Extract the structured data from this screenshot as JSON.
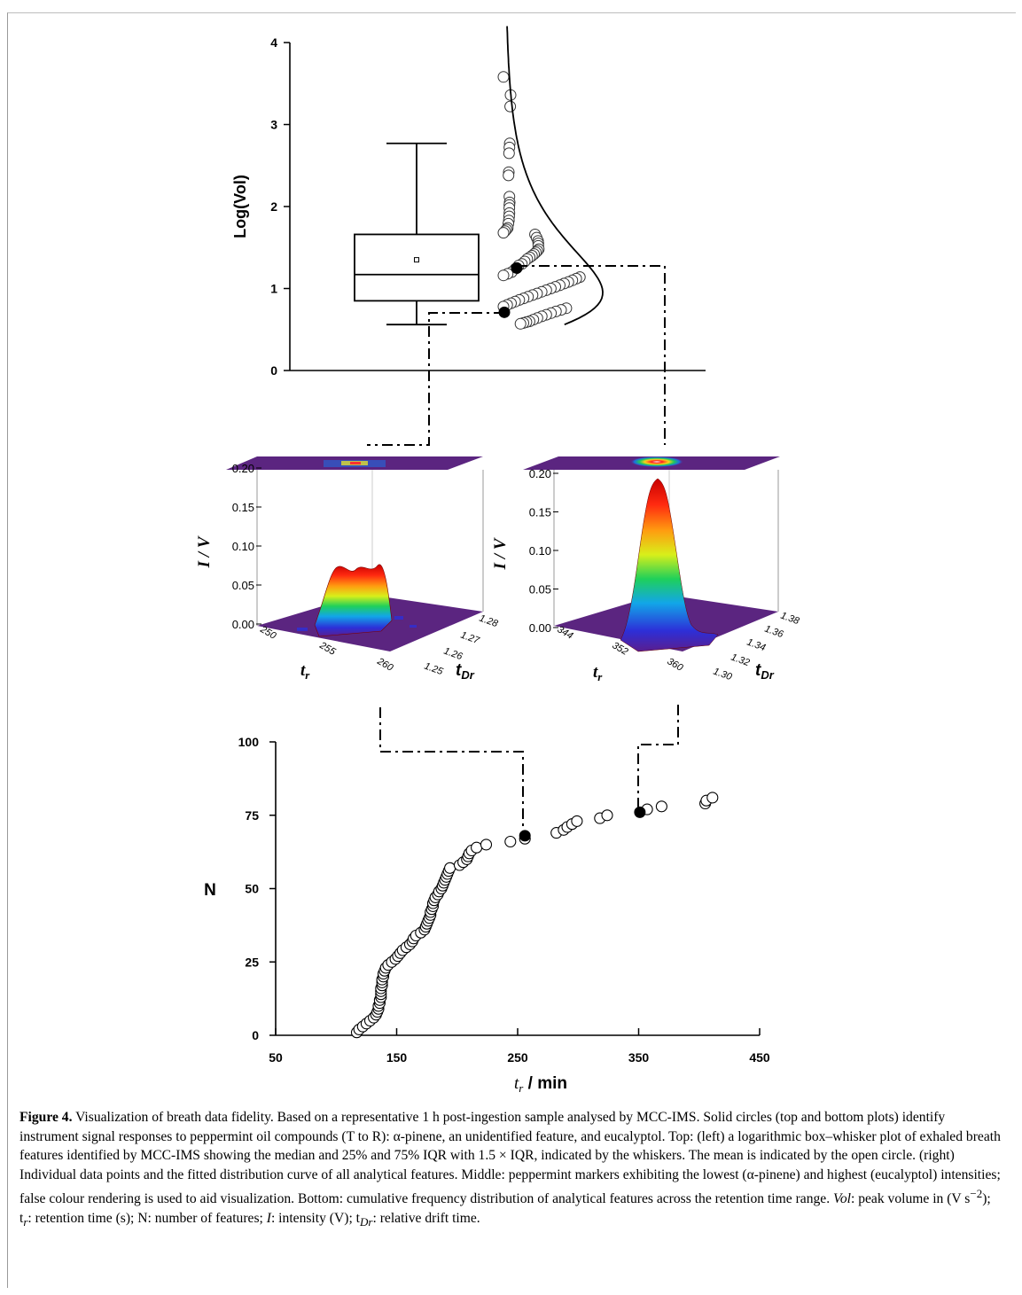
{
  "figure_label": "Figure 4.",
  "caption_text": "Visualization of breath data fidelity. Based on a representative 1 h post-ingestion sample analysed by MCC-IMS. Solid circles (top and bottom plots) identify instrument signal responses to peppermint oil compounds (T to R): α-pinene, an unidentified feature, and eucalyptol. Top: (left) a logarithmic box–whisker plot of exhaled breath features identified by MCC-IMS showing the median and 25% and 75% IQR with 1.5 × IQR, indicated by the whiskers. The mean is indicated by the open circle. (right) Individual data points and the fitted distribution curve of all analytical features. Middle: peppermint markers exhibiting the lowest (α-pinene) and highest (eucalyptol) intensities; false colour rendering is used to aid visualization. Bottom: cumulative frequency distribution of analytical features across the retention time range.",
  "caption_tail": {
    "vol_italic": "Vol",
    "vol_text": ": peak volume in (V s",
    "vol_sup": "−2",
    "tr_text": "); t",
    "tr_sub": "r",
    "tr_desc": ": retention time (s); N: number of features; ",
    "i_italic": "I",
    "i_desc": ": intensity (V); t",
    "tdr_sub": "Dr",
    "tdr_desc": ": relative drift time."
  },
  "chart_data": [
    {
      "type": "box",
      "ylabel": "Log(Vol)",
      "ylim": [
        0,
        4
      ],
      "yticks": [
        "0",
        "1",
        "2",
        "3",
        "4"
      ],
      "box": {
        "whisker_low": 0.56,
        "q1": 0.85,
        "median": 1.17,
        "mean": 1.35,
        "q3": 1.66,
        "whisker_high": 2.77
      },
      "highlighted_points": [
        0.71,
        1.25
      ],
      "points": [
        3.58,
        3.36,
        3.22,
        2.77,
        2.72,
        2.65,
        2.42,
        2.38,
        2.12,
        2.05,
        2.02,
        1.98,
        1.92,
        1.88,
        1.83,
        1.79,
        1.74,
        1.72,
        1.7,
        1.68,
        1.66,
        1.62,
        1.58,
        1.55,
        1.52,
        1.48,
        1.46,
        1.44,
        1.42,
        1.4,
        1.38,
        1.36,
        1.33,
        1.3,
        1.28,
        1.24,
        1.2,
        1.18,
        1.16,
        1.14,
        1.12,
        1.1,
        1.08,
        1.06,
        1.04,
        1.02,
        1.0,
        0.98,
        0.96,
        0.94,
        0.92,
        0.9,
        0.88,
        0.86,
        0.84,
        0.82,
        0.8,
        0.78,
        0.76,
        0.74,
        0.72,
        0.7,
        0.68,
        0.66,
        0.64,
        0.62,
        0.6,
        0.59,
        0.58,
        0.57
      ]
    },
    {
      "type": "surface3d",
      "ylabel": "I / V",
      "xlabel": "t_r",
      "zlabel": "t_Dr",
      "yticks": [
        "0.00",
        "0.05",
        "0.10",
        "0.15",
        "0.20"
      ],
      "xticks": [
        "250",
        "255",
        "260"
      ],
      "zticks": [
        "1.25",
        "1.26",
        "1.27",
        "1.28"
      ]
    },
    {
      "type": "surface3d",
      "ylabel": "I / V",
      "xlabel": "t_r",
      "zlabel": "t_Dr",
      "yticks": [
        "0.00",
        "0.05",
        "0.10",
        "0.15",
        "0.20"
      ],
      "xticks": [
        "344",
        "352",
        "360"
      ],
      "zticks": [
        "1.30",
        "1.32",
        "1.34",
        "1.36",
        "1.38"
      ]
    },
    {
      "type": "scatter",
      "xlabel": "t_r / min",
      "ylabel": "N",
      "xlim": [
        50,
        450
      ],
      "ylim": [
        0,
        100
      ],
      "xticks": [
        "50",
        "150",
        "250",
        "350",
        "450"
      ],
      "yticks": [
        "0",
        "25",
        "50",
        "75",
        "100"
      ],
      "points": [
        [
          117,
          1
        ],
        [
          119,
          2
        ],
        [
          122,
          3
        ],
        [
          125,
          4
        ],
        [
          128,
          5
        ],
        [
          131,
          6
        ],
        [
          133,
          7
        ],
        [
          134,
          8
        ],
        [
          135,
          9
        ],
        [
          135,
          10
        ],
        [
          136,
          11
        ],
        [
          136,
          12
        ],
        [
          137,
          13
        ],
        [
          137,
          14
        ],
        [
          137,
          15
        ],
        [
          137,
          16
        ],
        [
          138,
          17
        ],
        [
          138,
          18
        ],
        [
          138,
          19
        ],
        [
          139,
          20
        ],
        [
          139,
          21
        ],
        [
          140,
          22
        ],
        [
          141,
          23
        ],
        [
          143,
          24
        ],
        [
          146,
          25
        ],
        [
          149,
          26
        ],
        [
          151,
          27
        ],
        [
          153,
          28
        ],
        [
          155,
          29
        ],
        [
          158,
          30
        ],
        [
          161,
          31
        ],
        [
          163,
          32
        ],
        [
          164,
          33
        ],
        [
          166,
          34
        ],
        [
          170,
          35
        ],
        [
          173,
          36
        ],
        [
          174,
          37
        ],
        [
          175,
          38
        ],
        [
          176,
          39
        ],
        [
          177,
          40
        ],
        [
          178,
          41
        ],
        [
          178,
          42
        ],
        [
          179,
          43
        ],
        [
          180,
          44
        ],
        [
          180,
          45
        ],
        [
          181,
          46
        ],
        [
          182,
          47
        ],
        [
          184,
          48
        ],
        [
          185,
          49
        ],
        [
          187,
          50
        ],
        [
          188,
          51
        ],
        [
          189,
          52
        ],
        [
          190,
          53
        ],
        [
          191,
          54
        ],
        [
          192,
          55
        ],
        [
          193,
          56
        ],
        [
          194,
          57
        ],
        [
          202,
          58
        ],
        [
          205,
          59
        ],
        [
          208,
          60
        ],
        [
          209,
          61
        ],
        [
          210,
          62
        ],
        [
          212,
          63
        ],
        [
          216,
          64
        ],
        [
          224,
          65
        ],
        [
          244,
          66
        ],
        [
          256,
          67
        ],
        [
          282,
          69
        ],
        [
          288,
          70
        ],
        [
          291,
          71
        ],
        [
          295,
          72
        ],
        [
          299,
          73
        ],
        [
          318,
          74
        ],
        [
          324,
          75
        ],
        [
          357,
          77
        ],
        [
          369,
          78
        ],
        [
          405,
          79
        ],
        [
          406,
          80
        ],
        [
          411,
          81
        ]
      ],
      "highlighted_points": [
        [
          256,
          68
        ],
        [
          351,
          76
        ]
      ]
    }
  ]
}
